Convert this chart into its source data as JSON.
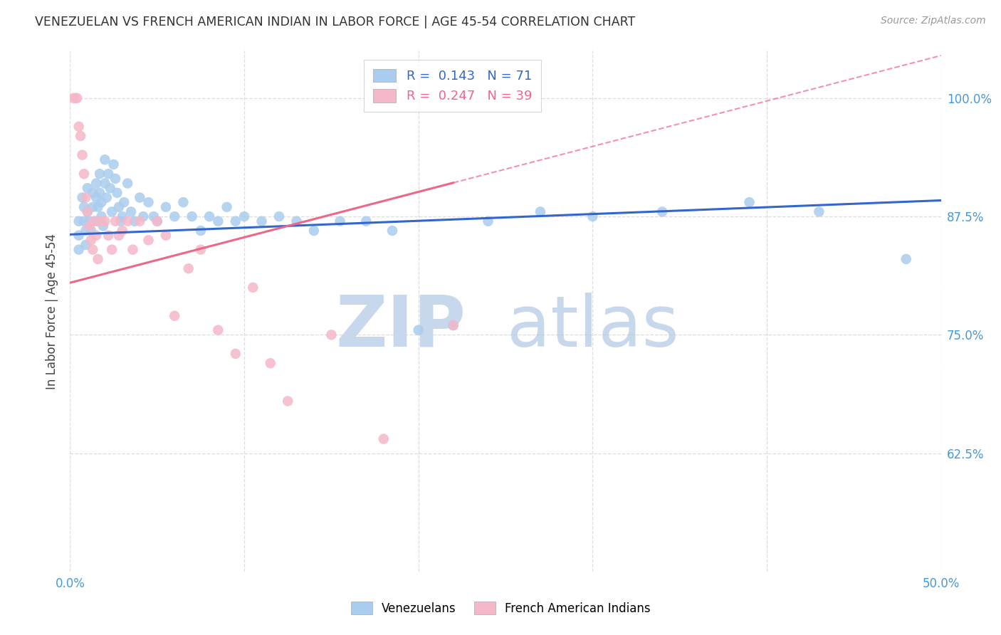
{
  "title": "VENEZUELAN VS FRENCH AMERICAN INDIAN IN LABOR FORCE | AGE 45-54 CORRELATION CHART",
  "source": "Source: ZipAtlas.com",
  "ylabel": "In Labor Force | Age 45-54",
  "xlim": [
    0.0,
    0.5
  ],
  "ylim": [
    0.5,
    1.05
  ],
  "xticks": [
    0.0,
    0.1,
    0.2,
    0.3,
    0.4,
    0.5
  ],
  "xticklabels": [
    "0.0%",
    "",
    "",
    "",
    "",
    "50.0%"
  ],
  "yticks": [
    0.625,
    0.75,
    0.875,
    1.0
  ],
  "yticklabels": [
    "62.5%",
    "75.0%",
    "87.5%",
    "100.0%"
  ],
  "blue_color": "#aaccee",
  "pink_color": "#f5b8c8",
  "line_blue": "#3366cc",
  "line_pink": "#ee6688",
  "R_blue": 0.143,
  "N_blue": 71,
  "R_pink": 0.247,
  "N_pink": 39,
  "legend_labels": [
    "Venezuelans",
    "French American Indians"
  ],
  "blue_scatter_x": [
    0.005,
    0.005,
    0.005,
    0.007,
    0.008,
    0.008,
    0.009,
    0.009,
    0.01,
    0.01,
    0.011,
    0.012,
    0.013,
    0.013,
    0.014,
    0.015,
    0.015,
    0.016,
    0.016,
    0.017,
    0.017,
    0.018,
    0.018,
    0.019,
    0.02,
    0.02,
    0.021,
    0.022,
    0.023,
    0.024,
    0.025,
    0.026,
    0.027,
    0.028,
    0.029,
    0.03,
    0.031,
    0.033,
    0.035,
    0.037,
    0.04,
    0.042,
    0.045,
    0.048,
    0.05,
    0.055,
    0.06,
    0.065,
    0.07,
    0.075,
    0.08,
    0.085,
    0.09,
    0.095,
    0.1,
    0.11,
    0.12,
    0.13,
    0.14,
    0.155,
    0.17,
    0.185,
    0.2,
    0.22,
    0.24,
    0.27,
    0.3,
    0.34,
    0.39,
    0.43,
    0.48
  ],
  "blue_scatter_y": [
    0.87,
    0.855,
    0.84,
    0.895,
    0.885,
    0.87,
    0.86,
    0.845,
    0.905,
    0.88,
    0.87,
    0.86,
    0.9,
    0.885,
    0.87,
    0.91,
    0.895,
    0.885,
    0.87,
    0.92,
    0.9,
    0.89,
    0.875,
    0.865,
    0.935,
    0.91,
    0.895,
    0.92,
    0.905,
    0.88,
    0.93,
    0.915,
    0.9,
    0.885,
    0.87,
    0.875,
    0.89,
    0.91,
    0.88,
    0.87,
    0.895,
    0.875,
    0.89,
    0.875,
    0.87,
    0.885,
    0.875,
    0.89,
    0.875,
    0.86,
    0.875,
    0.87,
    0.885,
    0.87,
    0.875,
    0.87,
    0.875,
    0.87,
    0.86,
    0.87,
    0.87,
    0.86,
    0.755,
    0.76,
    0.87,
    0.88,
    0.875,
    0.88,
    0.89,
    0.88,
    0.83
  ],
  "pink_scatter_x": [
    0.002,
    0.003,
    0.004,
    0.005,
    0.006,
    0.007,
    0.008,
    0.009,
    0.01,
    0.011,
    0.012,
    0.013,
    0.014,
    0.015,
    0.016,
    0.018,
    0.02,
    0.022,
    0.024,
    0.026,
    0.028,
    0.03,
    0.033,
    0.036,
    0.04,
    0.045,
    0.05,
    0.055,
    0.06,
    0.068,
    0.075,
    0.085,
    0.095,
    0.105,
    0.115,
    0.125,
    0.15,
    0.18,
    0.22
  ],
  "pink_scatter_y": [
    1.0,
    1.0,
    1.0,
    0.97,
    0.96,
    0.94,
    0.92,
    0.895,
    0.88,
    0.865,
    0.85,
    0.84,
    0.87,
    0.855,
    0.83,
    0.87,
    0.87,
    0.855,
    0.84,
    0.87,
    0.855,
    0.86,
    0.87,
    0.84,
    0.87,
    0.85,
    0.87,
    0.855,
    0.77,
    0.82,
    0.84,
    0.755,
    0.73,
    0.8,
    0.72,
    0.68,
    0.75,
    0.64,
    0.76
  ],
  "background_color": "#ffffff",
  "title_color": "#333333",
  "source_color": "#999999",
  "axis_label_color": "#444444",
  "ytick_color": "#4499dd",
  "xtick_color": "#4499dd",
  "grid_color": "#dddddd",
  "line_blue_intercept": 0.856,
  "line_blue_slope": 0.072,
  "line_pink_intercept": 0.805,
  "line_pink_slope": 0.48
}
